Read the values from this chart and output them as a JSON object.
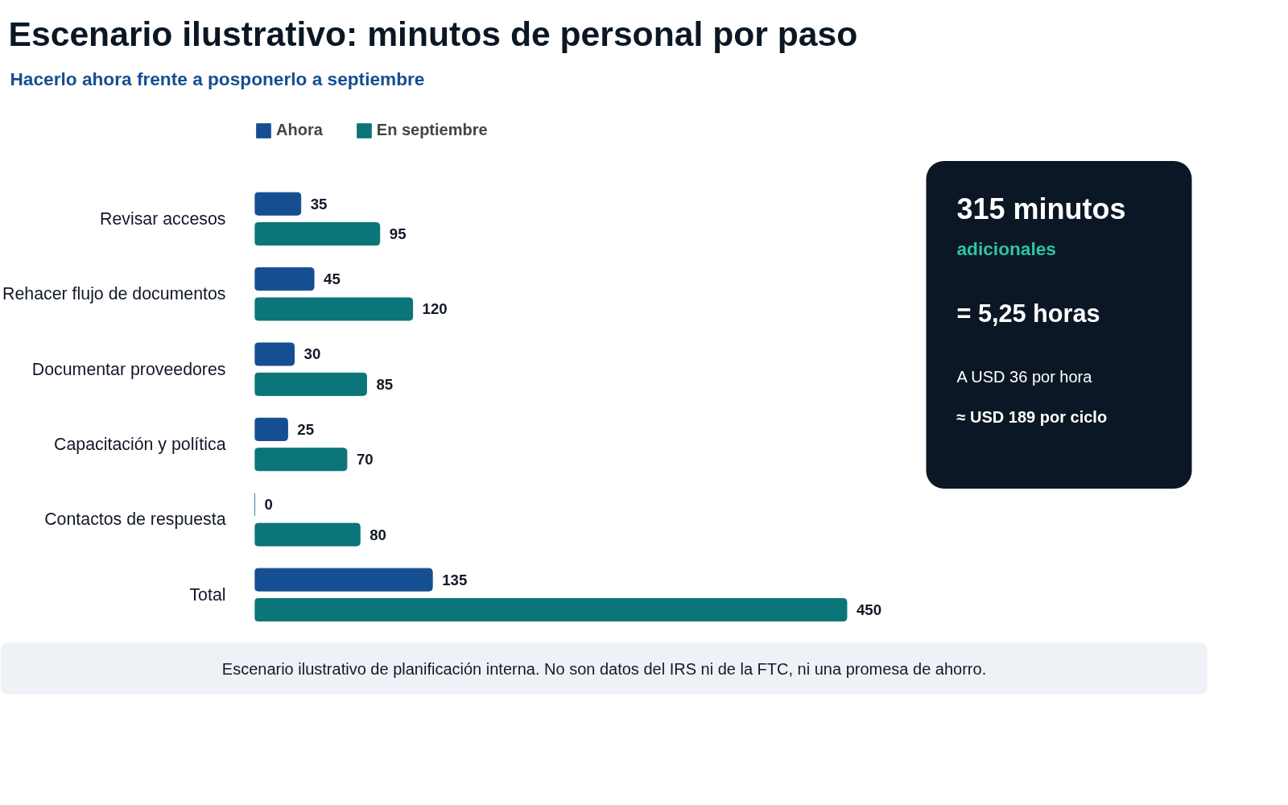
{
  "chart_data": [
    {
      "type": "bar",
      "orientation": "horizontal",
      "title": "Escenario ilustrativo: minutos de personal por paso",
      "subtitle": "Hacerlo ahora frente a posponerlo a septiembre",
      "categories": [
        "Revisar accesos",
        "Rehacer flujo de documentos",
        "Documentar proveedores",
        "Capacitación y política",
        "Contactos de respuesta",
        "Total"
      ],
      "series": [
        {
          "name": "Ahora",
          "color": "#154e91",
          "values": [
            35,
            45,
            30,
            25,
            0,
            135
          ]
        },
        {
          "name": "En septiembre",
          "color": "#0b7579",
          "values": [
            95,
            120,
            85,
            70,
            80,
            450
          ]
        }
      ],
      "data_labels": true,
      "legend": "top left",
      "grid": false,
      "annotations": [
        "Escenario ilustrativo de planificación interna. No son datos del IRS ni de la FTC, ni una promesa de ahorro."
      ]
    },
    {
      "type": "other",
      "annotations": [
        "315 minutos",
        "adicionales",
        "= 5,25 horas",
        "A USD 36 por hora",
        "≈ USD 189 por ciclo"
      ]
    }
  ]
}
